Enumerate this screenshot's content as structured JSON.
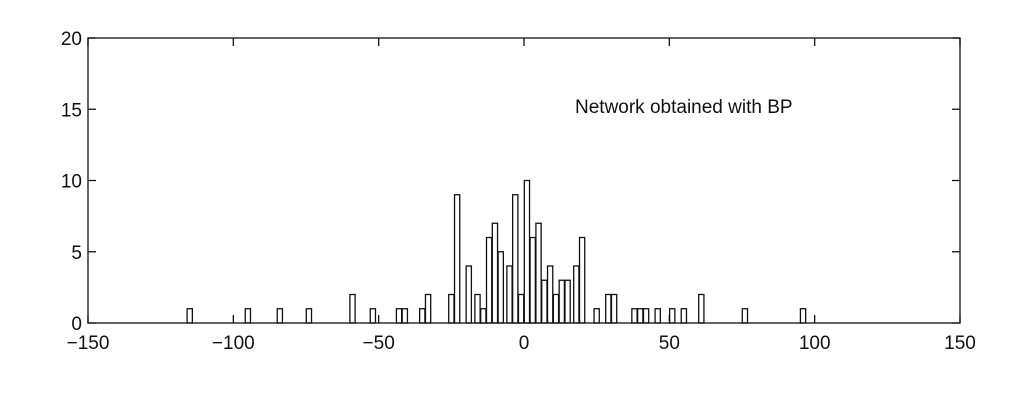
{
  "chart_data": {
    "type": "bar",
    "subtype": "histogram",
    "title": "",
    "xlabel": "",
    "ylabel": "",
    "annotation": "Network obtained with BP",
    "xlim": [
      -150,
      150
    ],
    "ylim": [
      0,
      20
    ],
    "xticks": [
      "−150",
      "−100",
      "−50",
      "0",
      "50",
      "100",
      "150"
    ],
    "xtick_values": [
      -150,
      -100,
      -50,
      0,
      50,
      100,
      150
    ],
    "yticks": [
      "0",
      "5",
      "10",
      "15",
      "20"
    ],
    "ytick_values": [
      0,
      5,
      10,
      15,
      20
    ],
    "grid": false,
    "legend": "none",
    "bar_width": 1.8,
    "bar_fill": "#ffffff",
    "bar_stroke": "#111111",
    "bins": [
      {
        "x": -115,
        "count": 1
      },
      {
        "x": -95,
        "count": 1
      },
      {
        "x": -84,
        "count": 1
      },
      {
        "x": -74,
        "count": 1
      },
      {
        "x": -59,
        "count": 2
      },
      {
        "x": -52,
        "count": 1
      },
      {
        "x": -43,
        "count": 1
      },
      {
        "x": -41,
        "count": 1
      },
      {
        "x": -35,
        "count": 1
      },
      {
        "x": -33,
        "count": 2
      },
      {
        "x": -25,
        "count": 2
      },
      {
        "x": -23,
        "count": 9
      },
      {
        "x": -19,
        "count": 4
      },
      {
        "x": -16,
        "count": 2
      },
      {
        "x": -14,
        "count": 1
      },
      {
        "x": -12,
        "count": 6
      },
      {
        "x": -10,
        "count": 7
      },
      {
        "x": -8,
        "count": 5
      },
      {
        "x": -5,
        "count": 4
      },
      {
        "x": -3,
        "count": 9
      },
      {
        "x": -1,
        "count": 2
      },
      {
        "x": 1,
        "count": 10
      },
      {
        "x": 3,
        "count": 6
      },
      {
        "x": 5,
        "count": 7
      },
      {
        "x": 7,
        "count": 3
      },
      {
        "x": 9,
        "count": 4
      },
      {
        "x": 11,
        "count": 2
      },
      {
        "x": 13,
        "count": 3
      },
      {
        "x": 15,
        "count": 3
      },
      {
        "x": 18,
        "count": 4
      },
      {
        "x": 20,
        "count": 6
      },
      {
        "x": 25,
        "count": 1
      },
      {
        "x": 29,
        "count": 2
      },
      {
        "x": 31,
        "count": 2
      },
      {
        "x": 38,
        "count": 1
      },
      {
        "x": 40,
        "count": 1
      },
      {
        "x": 42,
        "count": 1
      },
      {
        "x": 46,
        "count": 1
      },
      {
        "x": 51,
        "count": 1
      },
      {
        "x": 55,
        "count": 1
      },
      {
        "x": 61,
        "count": 2
      },
      {
        "x": 76,
        "count": 1
      },
      {
        "x": 96,
        "count": 1
      }
    ]
  }
}
